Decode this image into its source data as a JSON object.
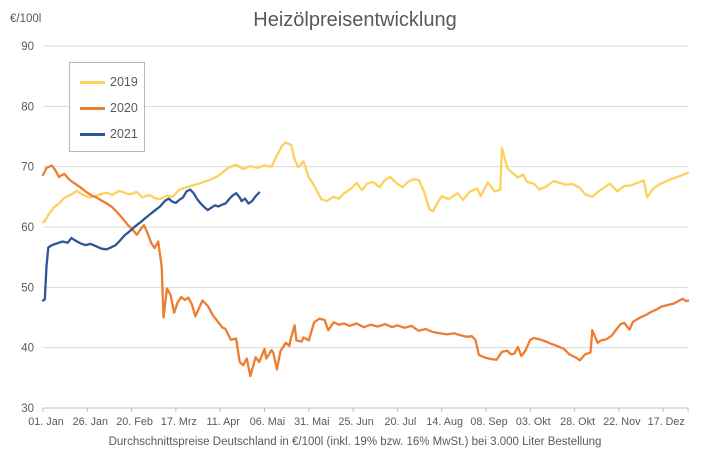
{
  "colors": {
    "text": "#595959",
    "gridline": "#d9d9d9",
    "axis": "#bfbfbf",
    "background": "#ffffff",
    "legend_border": "#b7b7b7"
  },
  "chart_data": {
    "type": "line",
    "title": "Heizölpreisentwicklung",
    "footnote": "Durchschnittspreise Deutschland in €/100l (inkl. 19% bzw. 16% MwSt.) bei 3.000 Liter Bestellung",
    "legend_position": "top-left-inside",
    "grid": "horizontal",
    "y_axis": {
      "label": "€/100l",
      "min": 30,
      "max": 90,
      "ticks": [
        90,
        80,
        70,
        60,
        50,
        40,
        30
      ]
    },
    "x_axis": {
      "unit": "day-of-year",
      "range_days": [
        1,
        365
      ],
      "ticks": [
        {
          "day": 1,
          "label": "01. Jan"
        },
        {
          "day": 26,
          "label": "26. Jan"
        },
        {
          "day": 51,
          "label": "20. Feb"
        },
        {
          "day": 76,
          "label": "17. Mrz"
        },
        {
          "day": 101,
          "label": "11. Apr"
        },
        {
          "day": 126,
          "label": "06. Mai"
        },
        {
          "day": 151,
          "label": "31. Mai"
        },
        {
          "day": 176,
          "label": "25. Jun"
        },
        {
          "day": 201,
          "label": "20. Jul"
        },
        {
          "day": 226,
          "label": "14. Aug"
        },
        {
          "day": 251,
          "label": "08. Sep"
        },
        {
          "day": 276,
          "label": "03. Okt"
        },
        {
          "day": 301,
          "label": "28. Okt"
        },
        {
          "day": 326,
          "label": "22. Nov"
        },
        {
          "day": 351,
          "label": "17. Dez"
        }
      ]
    },
    "series": [
      {
        "name": "2019",
        "color": "#fcd15c",
        "points": [
          [
            1,
            60.8
          ],
          [
            2,
            61.0
          ],
          [
            4,
            62.0
          ],
          [
            7,
            63.2
          ],
          [
            10,
            63.9
          ],
          [
            13,
            64.8
          ],
          [
            17,
            65.4
          ],
          [
            20,
            66.0
          ],
          [
            23,
            65.4
          ],
          [
            27,
            64.9
          ],
          [
            30,
            65.1
          ],
          [
            33,
            65.4
          ],
          [
            37,
            65.7
          ],
          [
            40,
            65.3
          ],
          [
            44,
            66.0
          ],
          [
            47,
            65.7
          ],
          [
            50,
            65.4
          ],
          [
            54,
            65.8
          ],
          [
            57,
            64.9
          ],
          [
            61,
            65.3
          ],
          [
            64,
            64.8
          ],
          [
            67,
            64.6
          ],
          [
            71,
            65.2
          ],
          [
            74,
            65.0
          ],
          [
            78,
            66.2
          ],
          [
            81,
            66.5
          ],
          [
            84,
            66.8
          ],
          [
            88,
            67.1
          ],
          [
            92,
            67.5
          ],
          [
            96,
            67.9
          ],
          [
            100,
            68.5
          ],
          [
            103,
            69.2
          ],
          [
            106,
            69.9
          ],
          [
            110,
            70.3
          ],
          [
            114,
            69.6
          ],
          [
            118,
            70.1
          ],
          [
            122,
            69.8
          ],
          [
            126,
            70.2
          ],
          [
            130,
            70.0
          ],
          [
            132,
            71.3
          ],
          [
            136,
            73.5
          ],
          [
            138,
            74.0
          ],
          [
            141,
            73.6
          ],
          [
            143,
            71.2
          ],
          [
            145,
            69.9
          ],
          [
            148,
            70.9
          ],
          [
            151,
            68.2
          ],
          [
            153,
            67.4
          ],
          [
            156,
            65.8
          ],
          [
            158,
            64.6
          ],
          [
            161,
            64.3
          ],
          [
            165,
            65.0
          ],
          [
            168,
            64.7
          ],
          [
            171,
            65.6
          ],
          [
            175,
            66.4
          ],
          [
            178,
            67.3
          ],
          [
            181,
            66.1
          ],
          [
            184,
            67.2
          ],
          [
            187,
            67.5
          ],
          [
            191,
            66.6
          ],
          [
            194,
            67.8
          ],
          [
            197,
            68.3
          ],
          [
            200,
            67.4
          ],
          [
            204,
            66.6
          ],
          [
            207,
            67.5
          ],
          [
            210,
            67.9
          ],
          [
            213,
            67.8
          ],
          [
            216,
            65.9
          ],
          [
            219,
            63.0
          ],
          [
            221,
            62.6
          ],
          [
            224,
            64.2
          ],
          [
            226,
            65.1
          ],
          [
            230,
            64.6
          ],
          [
            235,
            65.6
          ],
          [
            238,
            64.5
          ],
          [
            242,
            65.9
          ],
          [
            246,
            66.4
          ],
          [
            248,
            65.1
          ],
          [
            252,
            67.4
          ],
          [
            256,
            65.9
          ],
          [
            259,
            66.2
          ],
          [
            260,
            73.1
          ],
          [
            263,
            69.8
          ],
          [
            265,
            69.2
          ],
          [
            269,
            68.2
          ],
          [
            272,
            68.7
          ],
          [
            274,
            67.5
          ],
          [
            278,
            67.2
          ],
          [
            281,
            66.2
          ],
          [
            285,
            66.7
          ],
          [
            289,
            67.6
          ],
          [
            293,
            67.3
          ],
          [
            296,
            67.0
          ],
          [
            300,
            67.1
          ],
          [
            304,
            66.5
          ],
          [
            307,
            65.4
          ],
          [
            311,
            65.0
          ],
          [
            315,
            66.0
          ],
          [
            321,
            67.2
          ],
          [
            325,
            65.9
          ],
          [
            329,
            66.8
          ],
          [
            333,
            66.9
          ],
          [
            337,
            67.4
          ],
          [
            340,
            67.7
          ],
          [
            342,
            64.9
          ],
          [
            345,
            66.3
          ],
          [
            349,
            67.1
          ],
          [
            353,
            67.6
          ],
          [
            357,
            68.1
          ],
          [
            361,
            68.5
          ],
          [
            365,
            69.0
          ]
        ]
      },
      {
        "name": "2020",
        "color": "#ed7d31",
        "points": [
          [
            1,
            68.6
          ],
          [
            3,
            69.8
          ],
          [
            6,
            70.2
          ],
          [
            8,
            69.4
          ],
          [
            10,
            68.3
          ],
          [
            13,
            68.8
          ],
          [
            16,
            67.8
          ],
          [
            19,
            67.2
          ],
          [
            22,
            66.6
          ],
          [
            25,
            65.9
          ],
          [
            28,
            65.3
          ],
          [
            31,
            64.9
          ],
          [
            34,
            64.4
          ],
          [
            37,
            63.9
          ],
          [
            40,
            63.3
          ],
          [
            43,
            62.4
          ],
          [
            46,
            61.4
          ],
          [
            49,
            60.3
          ],
          [
            52,
            59.4
          ],
          [
            54,
            58.7
          ],
          [
            56,
            59.6
          ],
          [
            58,
            60.3
          ],
          [
            60,
            59.0
          ],
          [
            62,
            57.4
          ],
          [
            64,
            56.5
          ],
          [
            66,
            57.6
          ],
          [
            68,
            53.4
          ],
          [
            69,
            45.0
          ],
          [
            71,
            49.8
          ],
          [
            73,
            48.7
          ],
          [
            75,
            45.8
          ],
          [
            77,
            47.5
          ],
          [
            79,
            48.4
          ],
          [
            81,
            47.9
          ],
          [
            83,
            48.3
          ],
          [
            85,
            47.2
          ],
          [
            87,
            45.2
          ],
          [
            89,
            46.5
          ],
          [
            91,
            47.8
          ],
          [
            94,
            46.9
          ],
          [
            97,
            45.3
          ],
          [
            100,
            44.2
          ],
          [
            102,
            43.4
          ],
          [
            104,
            43.1
          ],
          [
            107,
            41.3
          ],
          [
            110,
            41.5
          ],
          [
            112,
            37.6
          ],
          [
            114,
            37.1
          ],
          [
            116,
            38.2
          ],
          [
            118,
            35.3
          ],
          [
            121,
            38.4
          ],
          [
            123,
            37.6
          ],
          [
            126,
            39.8
          ],
          [
            127,
            38.2
          ],
          [
            130,
            39.6
          ],
          [
            131,
            39.1
          ],
          [
            133,
            36.4
          ],
          [
            135,
            39.4
          ],
          [
            138,
            40.8
          ],
          [
            140,
            40.3
          ],
          [
            141,
            41.7
          ],
          [
            143,
            43.7
          ],
          [
            144,
            41.2
          ],
          [
            147,
            41.0
          ],
          [
            148,
            41.7
          ],
          [
            151,
            41.2
          ],
          [
            154,
            44.2
          ],
          [
            157,
            44.8
          ],
          [
            160,
            44.6
          ],
          [
            161,
            43.7
          ],
          [
            162,
            42.9
          ],
          [
            165,
            44.2
          ],
          [
            168,
            43.8
          ],
          [
            171,
            44.0
          ],
          [
            174,
            43.6
          ],
          [
            178,
            44.0
          ],
          [
            182,
            43.4
          ],
          [
            186,
            43.8
          ],
          [
            190,
            43.5
          ],
          [
            194,
            43.9
          ],
          [
            198,
            43.4
          ],
          [
            201,
            43.7
          ],
          [
            205,
            43.3
          ],
          [
            209,
            43.6
          ],
          [
            213,
            42.8
          ],
          [
            217,
            43.1
          ],
          [
            221,
            42.6
          ],
          [
            225,
            42.4
          ],
          [
            229,
            42.2
          ],
          [
            233,
            42.4
          ],
          [
            236,
            42.1
          ],
          [
            240,
            41.8
          ],
          [
            243,
            41.9
          ],
          [
            245,
            41.3
          ],
          [
            247,
            38.8
          ],
          [
            251,
            38.3
          ],
          [
            254,
            38.1
          ],
          [
            257,
            38.0
          ],
          [
            260,
            39.3
          ],
          [
            263,
            39.5
          ],
          [
            265,
            38.9
          ],
          [
            267,
            39.0
          ],
          [
            269,
            40.1
          ],
          [
            271,
            38.6
          ],
          [
            273,
            39.4
          ],
          [
            276,
            41.3
          ],
          [
            278,
            41.6
          ],
          [
            281,
            41.4
          ],
          [
            285,
            41.0
          ],
          [
            288,
            40.6
          ],
          [
            291,
            40.3
          ],
          [
            295,
            39.8
          ],
          [
            298,
            38.9
          ],
          [
            302,
            38.3
          ],
          [
            304,
            37.9
          ],
          [
            307,
            38.9
          ],
          [
            310,
            39.2
          ],
          [
            311,
            42.9
          ],
          [
            314,
            40.8
          ],
          [
            316,
            41.2
          ],
          [
            319,
            41.4
          ],
          [
            322,
            42.0
          ],
          [
            325,
            43.2
          ],
          [
            327,
            43.9
          ],
          [
            329,
            44.1
          ],
          [
            332,
            43.0
          ],
          [
            334,
            44.3
          ],
          [
            338,
            45.0
          ],
          [
            341,
            45.4
          ],
          [
            344,
            45.9
          ],
          [
            347,
            46.3
          ],
          [
            350,
            46.8
          ],
          [
            354,
            47.1
          ],
          [
            357,
            47.3
          ],
          [
            360,
            47.8
          ],
          [
            362,
            48.1
          ],
          [
            364,
            47.7
          ],
          [
            365,
            47.8
          ]
        ]
      },
      {
        "name": "2021",
        "color": "#2f5597",
        "points": [
          [
            1,
            47.8
          ],
          [
            2,
            48.0
          ],
          [
            3,
            53.5
          ],
          [
            4,
            56.6
          ],
          [
            6,
            57.0
          ],
          [
            9,
            57.3
          ],
          [
            12,
            57.6
          ],
          [
            15,
            57.4
          ],
          [
            17,
            58.2
          ],
          [
            19,
            57.8
          ],
          [
            22,
            57.3
          ],
          [
            25,
            57.0
          ],
          [
            28,
            57.2
          ],
          [
            31,
            56.8
          ],
          [
            34,
            56.4
          ],
          [
            37,
            56.3
          ],
          [
            40,
            56.7
          ],
          [
            42,
            57.0
          ],
          [
            44,
            57.6
          ],
          [
            47,
            58.6
          ],
          [
            50,
            59.3
          ],
          [
            53,
            60.1
          ],
          [
            56,
            60.8
          ],
          [
            58,
            61.3
          ],
          [
            61,
            62.0
          ],
          [
            64,
            62.7
          ],
          [
            67,
            63.4
          ],
          [
            70,
            64.4
          ],
          [
            72,
            64.7
          ],
          [
            74,
            64.2
          ],
          [
            76,
            64.0
          ],
          [
            78,
            64.5
          ],
          [
            80,
            64.9
          ],
          [
            82,
            65.9
          ],
          [
            84,
            66.2
          ],
          [
            86,
            65.6
          ],
          [
            88,
            64.6
          ],
          [
            90,
            63.9
          ],
          [
            92,
            63.3
          ],
          [
            94,
            62.8
          ],
          [
            96,
            63.2
          ],
          [
            98,
            63.6
          ],
          [
            100,
            63.4
          ],
          [
            102,
            63.7
          ],
          [
            104,
            63.9
          ],
          [
            106,
            64.6
          ],
          [
            108,
            65.2
          ],
          [
            110,
            65.6
          ],
          [
            112,
            64.9
          ],
          [
            113,
            64.3
          ],
          [
            115,
            64.7
          ],
          [
            117,
            63.9
          ],
          [
            119,
            64.3
          ],
          [
            121,
            65.1
          ],
          [
            123,
            65.7
          ]
        ]
      }
    ]
  }
}
